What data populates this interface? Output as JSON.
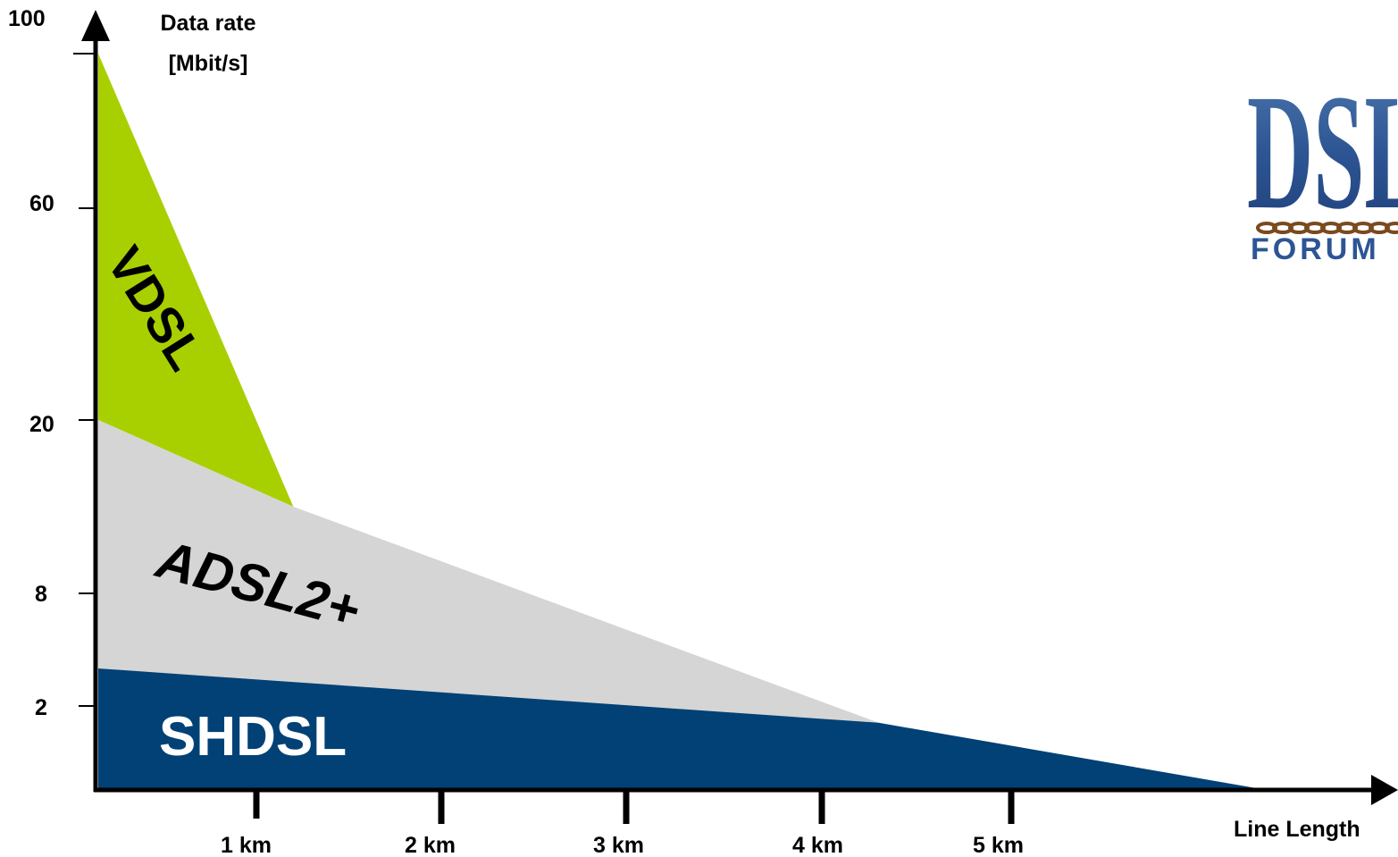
{
  "chart_data": {
    "type": "area",
    "y_axis": {
      "title_line1": "Data rate",
      "title_line2": "[Mbit/s]",
      "ticks": [
        {
          "label": "100",
          "value": 100
        },
        {
          "label": "60",
          "value": 60
        },
        {
          "label": "20",
          "value": 20
        },
        {
          "label": "8",
          "value": 8
        },
        {
          "label": "2",
          "value": 2
        }
      ]
    },
    "x_axis": {
      "title": "Line Length",
      "ticks": [
        {
          "label": "1 km",
          "value": 1
        },
        {
          "label": "2 km",
          "value": 2
        },
        {
          "label": "3 km",
          "value": 3
        },
        {
          "label": "4 km",
          "value": 4
        },
        {
          "label": "5 km",
          "value": 5
        }
      ]
    },
    "series": [
      {
        "name": "VDSL",
        "color": "#a8d000",
        "points": [
          [
            0,
            100
          ],
          [
            1.2,
            14
          ],
          [
            0,
            20
          ]
        ]
      },
      {
        "name": "ADSL2+",
        "color": "#d5d5d5",
        "points": [
          [
            0,
            20
          ],
          [
            1.2,
            14
          ],
          [
            4.3,
            1.6
          ],
          [
            0,
            4
          ]
        ]
      },
      {
        "name": "SHDSL",
        "color": "#014175",
        "points": [
          [
            0,
            4
          ],
          [
            4.3,
            1.6
          ],
          [
            6.35,
            0
          ],
          [
            0,
            0
          ]
        ]
      }
    ]
  },
  "logo": {
    "text": "DSL",
    "subtext": "FORUM"
  }
}
